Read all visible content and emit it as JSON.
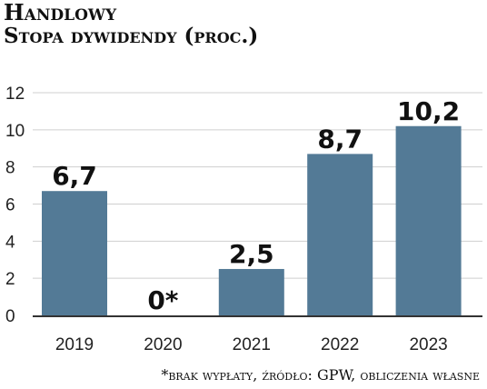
{
  "header": {
    "title": "Handlowy",
    "subtitle": "Stopa dywidendy (proc.)"
  },
  "chart_data": {
    "type": "bar",
    "title": "Handlowy",
    "subtitle": "Stopa dywidendy (proc.)",
    "categories": [
      "2019",
      "2020",
      "2021",
      "2022",
      "2023"
    ],
    "values": [
      6.7,
      0,
      2.5,
      8.7,
      10.2
    ],
    "value_labels": [
      "6,7",
      "0*",
      "2,5",
      "8,7",
      "10,2"
    ],
    "y_ticks": [
      0,
      2,
      4,
      6,
      8,
      10,
      12
    ],
    "ylim": [
      0,
      12
    ],
    "grid": true,
    "bar_color": "#537a96",
    "grid_color": "#cfcfcf",
    "xlabel": "",
    "ylabel": ""
  },
  "footnote": "*brak wypłaty, źródło: GPW, obliczenia własne"
}
